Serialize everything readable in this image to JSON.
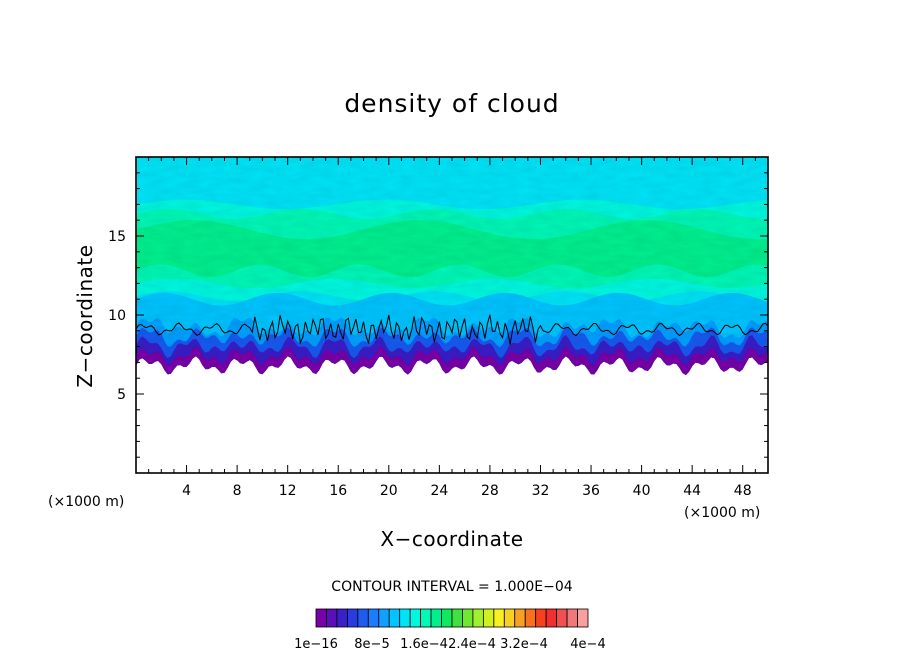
{
  "chart_data": {
    "type": "heatmap",
    "title": "density of cloud",
    "xlabel": "X−coordinate",
    "ylabel": "Z−coordinate",
    "x_unit_left": "(×1000 m)",
    "x_unit_right": "(×1000 m)",
    "xlim": [
      0,
      50
    ],
    "ylim": [
      0,
      20
    ],
    "x_ticks": [
      4,
      8,
      12,
      16,
      20,
      24,
      28,
      32,
      36,
      40,
      44,
      48
    ],
    "y_ticks": [
      5,
      10,
      15
    ],
    "contour_interval_text": "CONTOUR INTERVAL = 1.000E−04",
    "colorbar_labels": [
      "1e−16",
      "8e−5",
      "1.6e−4",
      "2.4e−4",
      "3.2e−4",
      "4e−4"
    ],
    "colorbar_colors": [
      "#7a00a8",
      "#5a10b8",
      "#3a20c8",
      "#2a3ce0",
      "#1e5cf0",
      "#1a7cff",
      "#10a0ff",
      "#00c4ff",
      "#00e4f8",
      "#00f8e0",
      "#00f8b8",
      "#00f090",
      "#10e860",
      "#40e040",
      "#70e830",
      "#a0f030",
      "#d0f020",
      "#f8f020",
      "#f8d020",
      "#f8a020",
      "#f87020",
      "#f84020",
      "#f03030",
      "#f05050",
      "#f07878",
      "#f8a0a0"
    ],
    "field_band_colors": [
      "#7a00a8",
      "#3a20c8",
      "#1e5cf0",
      "#10a0ff",
      "#00c4ff",
      "#00e4f8",
      "#00f8e0",
      "#00f8b8",
      "#00f090"
    ],
    "grid": false,
    "legend": "bottom-center colorbar"
  }
}
